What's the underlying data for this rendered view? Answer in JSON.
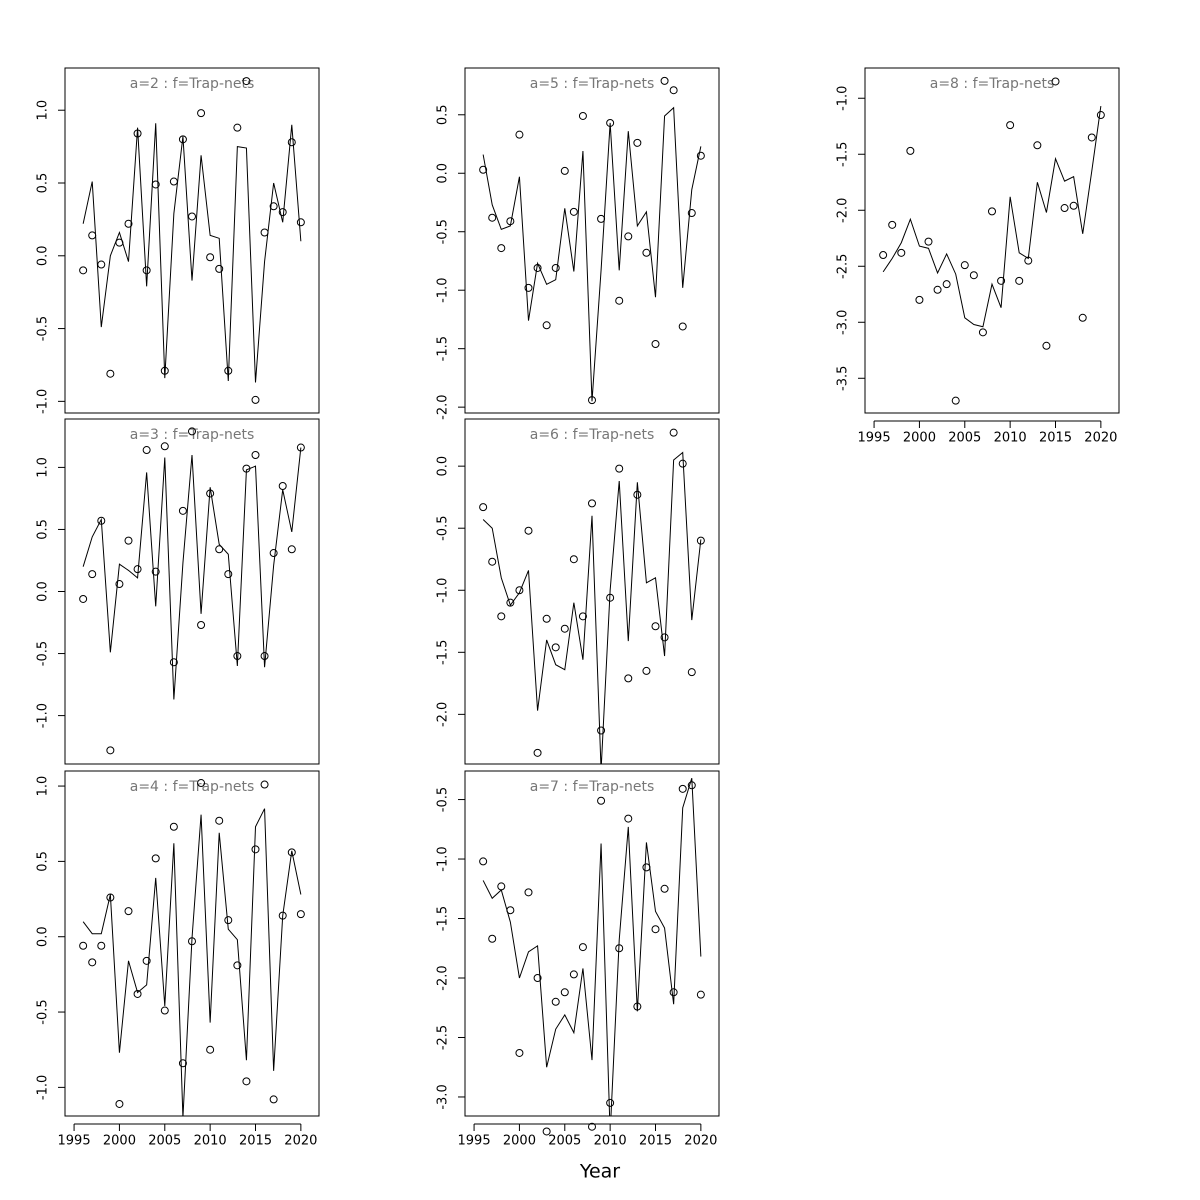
{
  "x_label": "Year",
  "chart_data": [
    {
      "type": "line",
      "title": "a=2 : f=Trap-nets",
      "x": [
        1996,
        1997,
        1998,
        1999,
        2000,
        2001,
        2002,
        2003,
        2004,
        2005,
        2006,
        2007,
        2008,
        2009,
        2010,
        2011,
        2012,
        2013,
        2014,
        2015,
        2016,
        2017,
        2018,
        2019,
        2020
      ],
      "xlim": [
        1994,
        2022
      ],
      "ylim": [
        -1.08,
        1.29
      ],
      "yticks": [
        {
          "value": -1,
          "label": "-1.0"
        },
        -0.5,
        {
          "value": 0,
          "label": "0.0"
        },
        0.5,
        {
          "value": 1,
          "label": "1.0"
        }
      ],
      "series": [
        {
          "mark": "circle",
          "color": "#000000",
          "values": [
            -0.1,
            0.14,
            -0.06,
            -0.81,
            0.09,
            0.22,
            0.84,
            -0.1,
            0.49,
            -0.79,
            0.51,
            0.8,
            0.27,
            0.98,
            -0.01,
            -0.09,
            -0.79,
            0.88,
            1.2,
            -0.99,
            0.16,
            0.34,
            0.3,
            0.78,
            0.23
          ]
        },
        {
          "mark": "line",
          "color": "#000000",
          "values": [
            0.22,
            0.51,
            -0.49,
            0.0,
            0.16,
            -0.04,
            0.88,
            -0.21,
            0.91,
            -0.84,
            0.29,
            0.82,
            -0.17,
            0.69,
            0.14,
            0.12,
            -0.86,
            0.75,
            0.74,
            -0.87,
            -0.04,
            0.5,
            0.23,
            0.9,
            0.1
          ]
        }
      ]
    },
    {
      "type": "line",
      "title": "a=3 : f=Trap-nets",
      "x": [
        1996,
        1997,
        1998,
        1999,
        2000,
        2001,
        2002,
        2003,
        2004,
        2005,
        2006,
        2007,
        2008,
        2009,
        2010,
        2011,
        2012,
        2013,
        2014,
        2015,
        2016,
        2017,
        2018,
        2019,
        2020
      ],
      "xlim": [
        1994,
        2022
      ],
      "ylim": [
        -1.39,
        1.39
      ],
      "yticks": [
        {
          "value": -1,
          "label": "-1.0"
        },
        -0.5,
        {
          "value": 0,
          "label": "0.0"
        },
        0.5,
        {
          "value": 1,
          "label": "1.0"
        }
      ],
      "series": [
        {
          "mark": "circle",
          "color": "#000000",
          "values": [
            -0.06,
            0.14,
            0.57,
            -1.28,
            0.06,
            0.41,
            0.18,
            1.14,
            0.16,
            1.17,
            -0.57,
            0.65,
            1.29,
            -0.27,
            0.79,
            0.34,
            0.14,
            -0.52,
            0.99,
            1.1,
            -0.52,
            0.31,
            0.85,
            0.34,
            1.16
          ]
        },
        {
          "mark": "line",
          "color": "#000000",
          "values": [
            0.2,
            0.44,
            0.58,
            -0.49,
            0.22,
            0.17,
            0.11,
            0.96,
            -0.12,
            1.08,
            -0.87,
            0.23,
            1.1,
            -0.18,
            0.84,
            0.38,
            0.3,
            -0.6,
            0.98,
            1.01,
            -0.61,
            0.21,
            0.82,
            0.48,
            1.16
          ]
        }
      ]
    },
    {
      "type": "line",
      "title": "a=4 : f=Trap-nets",
      "x": [
        1996,
        1997,
        1998,
        1999,
        2000,
        2001,
        2002,
        2003,
        2004,
        2005,
        2006,
        2007,
        2008,
        2009,
        2010,
        2011,
        2012,
        2013,
        2014,
        2015,
        2016,
        2017,
        2018,
        2019,
        2020
      ],
      "xlim": [
        1994,
        2022
      ],
      "ylim": [
        -1.19,
        1.1
      ],
      "xticks": [
        1995,
        2000,
        2005,
        2010,
        2015,
        2020
      ],
      "yticks": [
        {
          "value": -1,
          "label": "-1.0"
        },
        -0.5,
        {
          "value": 0,
          "label": "0.0"
        },
        0.5,
        {
          "value": 1,
          "label": "1.0"
        }
      ],
      "series": [
        {
          "mark": "circle",
          "color": "#000000",
          "values": [
            -0.06,
            -0.17,
            -0.06,
            0.26,
            -1.11,
            0.17,
            -0.38,
            -0.16,
            0.52,
            -0.49,
            0.73,
            -0.84,
            -0.03,
            1.02,
            -0.75,
            0.77,
            0.11,
            -0.19,
            -0.96,
            0.58,
            1.01,
            -1.08,
            0.14,
            0.56,
            0.15
          ]
        },
        {
          "mark": "line",
          "color": "#000000",
          "values": [
            0.1,
            0.02,
            0.02,
            0.28,
            -0.77,
            -0.16,
            -0.37,
            -0.32,
            0.39,
            -0.46,
            0.62,
            -1.2,
            -0.01,
            0.81,
            -0.57,
            0.69,
            0.05,
            -0.02,
            -0.82,
            0.73,
            0.85,
            -0.89,
            0.14,
            0.57,
            0.28
          ]
        }
      ]
    },
    {
      "type": "line",
      "title": "a=5 : f=Trap-nets",
      "x": [
        1996,
        1997,
        1998,
        1999,
        2000,
        2001,
        2002,
        2003,
        2004,
        2005,
        2006,
        2007,
        2008,
        2009,
        2010,
        2011,
        2012,
        2013,
        2014,
        2015,
        2016,
        2017,
        2018,
        2019,
        2020
      ],
      "xlim": [
        1994,
        2022
      ],
      "ylim": [
        -2.05,
        0.9
      ],
      "yticks": [
        {
          "value": -2,
          "label": "-2.0"
        },
        -1.5,
        {
          "value": -1,
          "label": "-1.0"
        },
        -0.5,
        {
          "value": 0,
          "label": "0.0"
        },
        0.5
      ],
      "series": [
        {
          "mark": "circle",
          "color": "#000000",
          "values": [
            0.03,
            -0.38,
            -0.64,
            -0.41,
            0.33,
            -0.98,
            -0.81,
            -1.3,
            -0.81,
            0.02,
            -0.33,
            0.49,
            -1.94,
            -0.39,
            0.43,
            -1.09,
            -0.54,
            0.26,
            -0.68,
            -1.46,
            0.79,
            0.71,
            -1.31,
            -0.34,
            0.15
          ]
        },
        {
          "mark": "line",
          "color": "#000000",
          "values": [
            0.16,
            -0.27,
            -0.48,
            -0.45,
            -0.03,
            -1.26,
            -0.77,
            -0.95,
            -0.91,
            -0.3,
            -0.84,
            0.19,
            -1.95,
            -0.83,
            0.43,
            -0.83,
            0.36,
            -0.45,
            -0.33,
            -1.06,
            0.49,
            0.56,
            -0.98,
            -0.14,
            0.23
          ]
        }
      ]
    },
    {
      "type": "line",
      "title": "a=6 : f=Trap-nets",
      "x": [
        1996,
        1997,
        1998,
        1999,
        2000,
        2001,
        2002,
        2003,
        2004,
        2005,
        2006,
        2007,
        2008,
        2009,
        2010,
        2011,
        2012,
        2013,
        2014,
        2015,
        2016,
        2017,
        2018,
        2019,
        2020
      ],
      "xlim": [
        1994,
        2022
      ],
      "ylim": [
        -2.4,
        0.38
      ],
      "yticks": [
        {
          "value": -2,
          "label": "-2.0"
        },
        -1.5,
        {
          "value": -1,
          "label": "-1.0"
        },
        -0.5,
        {
          "value": 0,
          "label": "0.0"
        }
      ],
      "series": [
        {
          "mark": "circle",
          "color": "#000000",
          "values": [
            -0.33,
            -0.77,
            -1.21,
            -1.1,
            -1.0,
            -0.52,
            -2.31,
            -1.23,
            -1.46,
            -1.31,
            -0.75,
            -1.21,
            -0.3,
            -2.13,
            -1.06,
            -0.02,
            -1.71,
            -0.23,
            -1.65,
            -1.29,
            -1.38,
            0.27,
            0.02,
            -1.66,
            -0.6
          ]
        },
        {
          "mark": "line",
          "color": "#000000",
          "values": [
            -0.43,
            -0.5,
            -0.9,
            -1.12,
            -1.02,
            -0.84,
            -1.97,
            -1.4,
            -1.6,
            -1.64,
            -1.1,
            -1.56,
            -0.4,
            -2.45,
            -1.0,
            -0.12,
            -1.41,
            -0.13,
            -0.94,
            -0.9,
            -1.53,
            0.05,
            0.11,
            -1.24,
            -0.59
          ]
        }
      ]
    },
    {
      "type": "line",
      "title": "a=7 : f=Trap-nets",
      "x": [
        1996,
        1997,
        1998,
        1999,
        2000,
        2001,
        2002,
        2003,
        2004,
        2005,
        2006,
        2007,
        2008,
        2009,
        2010,
        2011,
        2012,
        2013,
        2014,
        2015,
        2016,
        2017,
        2018,
        2019,
        2020
      ],
      "xlim": [
        1994,
        2022
      ],
      "ylim": [
        -3.16,
        -0.26
      ],
      "xticks": [
        1995,
        2000,
        2005,
        2010,
        2015,
        2020
      ],
      "yticks": [
        {
          "value": -3,
          "label": "-3.0"
        },
        -2.5,
        {
          "value": -2,
          "label": "-2.0"
        },
        -1.5,
        {
          "value": -1,
          "label": "-1.0"
        },
        -0.5
      ],
      "series": [
        {
          "mark": "circle",
          "color": "#000000",
          "values": [
            -1.02,
            -1.67,
            -1.23,
            -1.43,
            -2.63,
            -1.28,
            -2.0,
            -3.29,
            -2.2,
            -2.12,
            -1.97,
            -1.74,
            -3.25,
            -0.51,
            -3.05,
            -1.75,
            -0.66,
            -2.24,
            -1.07,
            -1.59,
            -1.25,
            -2.12,
            -0.41,
            -0.38,
            -2.14
          ]
        },
        {
          "mark": "line",
          "color": "#000000",
          "values": [
            -1.18,
            -1.33,
            -1.26,
            -1.53,
            -2.0,
            -1.78,
            -1.73,
            -2.75,
            -2.43,
            -2.31,
            -2.46,
            -1.92,
            -2.69,
            -0.87,
            -3.31,
            -1.68,
            -0.73,
            -2.28,
            -0.86,
            -1.44,
            -1.58,
            -2.22,
            -0.57,
            -0.32,
            -1.82
          ]
        }
      ]
    },
    {
      "type": "line",
      "title": "a=8 : f=Trap-nets",
      "x": [
        1996,
        1997,
        1998,
        1999,
        2000,
        2001,
        2002,
        2003,
        2004,
        2005,
        2006,
        2007,
        2008,
        2009,
        2010,
        2011,
        2012,
        2013,
        2014,
        2015,
        2016,
        2017,
        2018,
        2019,
        2020
      ],
      "xlim": [
        1994,
        2022
      ],
      "ylim": [
        -3.81,
        -0.73
      ],
      "xticks": [
        1995,
        2000,
        2005,
        2010,
        2015,
        2020
      ],
      "yticks": [
        -3.5,
        {
          "value": -3,
          "label": "-3.0"
        },
        -2.5,
        {
          "value": -2,
          "label": "-2.0"
        },
        -1.5,
        {
          "value": -1,
          "label": "-1.0"
        }
      ],
      "series": [
        {
          "mark": "circle",
          "color": "#000000",
          "values": [
            -2.4,
            -2.13,
            -2.38,
            -1.47,
            -2.8,
            -2.28,
            -2.71,
            -2.66,
            -3.7,
            -2.49,
            -2.58,
            -3.09,
            -2.01,
            -2.63,
            -1.24,
            -2.63,
            -2.45,
            -1.42,
            -3.21,
            -0.85,
            -1.98,
            -1.96,
            -2.96,
            -1.35,
            -1.15
          ]
        },
        {
          "mark": "line",
          "color": "#000000",
          "values": [
            -2.55,
            -2.43,
            -2.29,
            -2.08,
            -2.32,
            -2.34,
            -2.56,
            -2.39,
            -2.57,
            -2.96,
            -3.02,
            -3.04,
            -2.66,
            -2.87,
            -1.88,
            -2.38,
            -2.43,
            -1.75,
            -2.02,
            -1.54,
            -1.74,
            -1.7,
            -2.21,
            -1.65,
            -1.07
          ]
        }
      ]
    }
  ]
}
